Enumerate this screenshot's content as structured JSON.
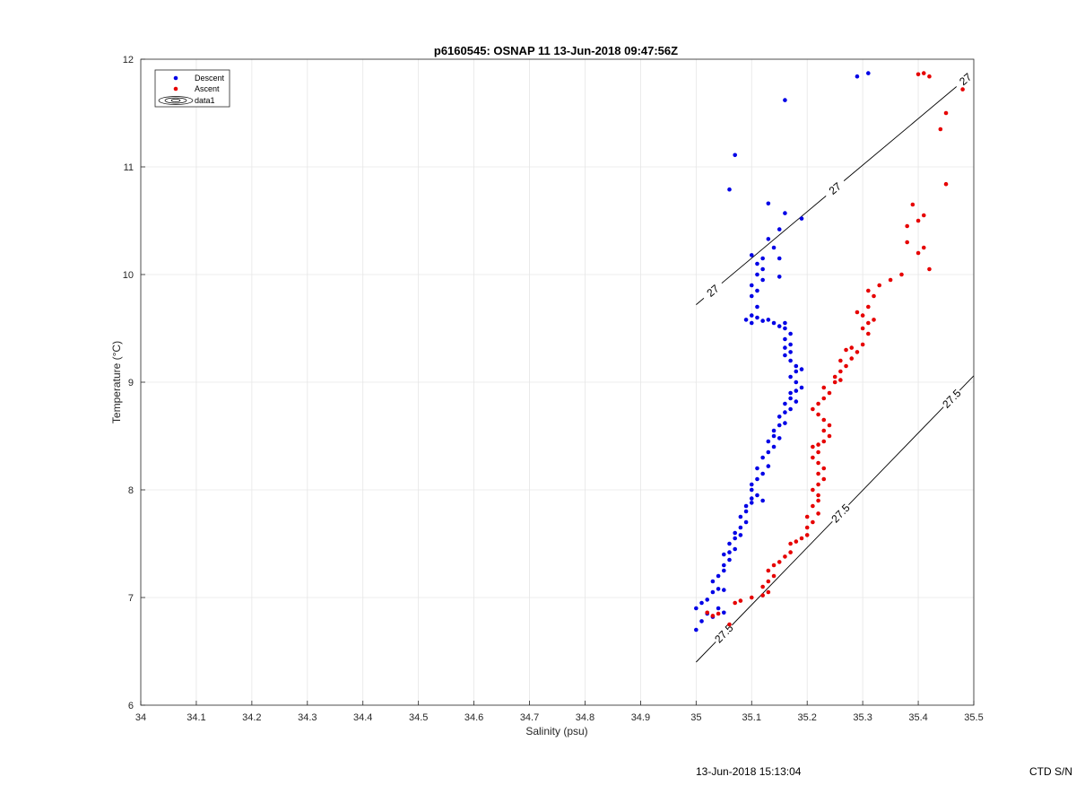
{
  "chart_data": {
    "type": "scatter",
    "title": "p6160545: OSNAP 11 13-Jun-2018 09:47:56Z",
    "xlabel": "Salinity (psu)",
    "ylabel": "Temperature (°C)",
    "xlim": [
      34,
      35.5
    ],
    "ylim": [
      6,
      12
    ],
    "xticks": [
      "34",
      "34.1",
      "34.2",
      "34.3",
      "34.4",
      "34.5",
      "34.6",
      "34.7",
      "34.8",
      "34.9",
      "35",
      "35.1",
      "35.2",
      "35.3",
      "35.4",
      "35.5"
    ],
    "yticks": [
      "6",
      "7",
      "8",
      "9",
      "10",
      "11",
      "12"
    ],
    "grid": true,
    "legend_position": "top-left",
    "legend": [
      "Descent",
      "Ascent",
      "data1"
    ],
    "contours": [
      {
        "level": "27",
        "color": "#000000",
        "points": [
          [
            35.0,
            9.72
          ],
          [
            35.5,
            11.88
          ]
        ],
        "labels": [
          {
            "text": "27",
            "at": [
              35.03,
              9.82
            ]
          },
          {
            "text": "27",
            "at": [
              35.25,
              10.82
            ]
          },
          {
            "text": "27",
            "at": [
              35.485,
              11.78
            ]
          }
        ]
      },
      {
        "level": "27.5",
        "color": "#000000",
        "points": [
          [
            35.0,
            6.4
          ],
          [
            35.5,
            9.06
          ]
        ],
        "labels": [
          {
            "text": "27.5",
            "at": [
              35.05,
              6.67
            ]
          },
          {
            "text": "27.5",
            "at": [
              35.26,
              7.78
            ]
          },
          {
            "text": "27.5",
            "at": [
              35.46,
              8.8
            ]
          }
        ]
      }
    ],
    "series": [
      {
        "name": "Descent",
        "color": "#0000e6",
        "points": [
          [
            35.0,
            6.7
          ],
          [
            35.0,
            6.9
          ],
          [
            35.01,
            6.95
          ],
          [
            35.01,
            6.78
          ],
          [
            35.02,
            6.85
          ],
          [
            35.03,
            6.82
          ],
          [
            35.02,
            6.98
          ],
          [
            35.03,
            7.05
          ],
          [
            35.04,
            7.08
          ],
          [
            35.05,
            7.07
          ],
          [
            35.04,
            6.9
          ],
          [
            35.05,
            6.86
          ],
          [
            35.03,
            7.15
          ],
          [
            35.04,
            7.2
          ],
          [
            35.05,
            7.25
          ],
          [
            35.05,
            7.3
          ],
          [
            35.06,
            7.35
          ],
          [
            35.05,
            7.4
          ],
          [
            35.06,
            7.42
          ],
          [
            35.07,
            7.45
          ],
          [
            35.06,
            7.5
          ],
          [
            35.07,
            7.55
          ],
          [
            35.08,
            7.58
          ],
          [
            35.07,
            7.6
          ],
          [
            35.08,
            7.65
          ],
          [
            35.09,
            7.7
          ],
          [
            35.08,
            7.75
          ],
          [
            35.09,
            7.8
          ],
          [
            35.09,
            7.85
          ],
          [
            35.1,
            7.88
          ],
          [
            35.1,
            7.92
          ],
          [
            35.11,
            7.95
          ],
          [
            35.12,
            7.9
          ],
          [
            35.1,
            8.0
          ],
          [
            35.1,
            8.05
          ],
          [
            35.11,
            8.1
          ],
          [
            35.12,
            8.15
          ],
          [
            35.11,
            8.2
          ],
          [
            35.13,
            8.22
          ],
          [
            35.12,
            8.3
          ],
          [
            35.13,
            8.35
          ],
          [
            35.14,
            8.4
          ],
          [
            35.13,
            8.45
          ],
          [
            35.14,
            8.5
          ],
          [
            35.15,
            8.48
          ],
          [
            35.14,
            8.55
          ],
          [
            35.15,
            8.6
          ],
          [
            35.16,
            8.62
          ],
          [
            35.15,
            8.68
          ],
          [
            35.16,
            8.72
          ],
          [
            35.17,
            8.75
          ],
          [
            35.16,
            8.8
          ],
          [
            35.17,
            8.85
          ],
          [
            35.18,
            8.82
          ],
          [
            35.17,
            8.9
          ],
          [
            35.18,
            8.92
          ],
          [
            35.19,
            8.95
          ],
          [
            35.18,
            9.0
          ],
          [
            35.17,
            9.05
          ],
          [
            35.18,
            9.1
          ],
          [
            35.19,
            9.12
          ],
          [
            35.18,
            9.15
          ],
          [
            35.17,
            9.2
          ],
          [
            35.16,
            9.25
          ],
          [
            35.17,
            9.28
          ],
          [
            35.16,
            9.32
          ],
          [
            35.17,
            9.35
          ],
          [
            35.16,
            9.4
          ],
          [
            35.17,
            9.45
          ],
          [
            35.16,
            9.5
          ],
          [
            35.15,
            9.52
          ],
          [
            35.16,
            9.55
          ],
          [
            35.14,
            9.55
          ],
          [
            35.13,
            9.58
          ],
          [
            35.12,
            9.57
          ],
          [
            35.11,
            9.6
          ],
          [
            35.1,
            9.62
          ],
          [
            35.09,
            9.58
          ],
          [
            35.1,
            9.55
          ],
          [
            35.11,
            9.7
          ],
          [
            35.1,
            9.8
          ],
          [
            35.11,
            9.85
          ],
          [
            35.1,
            9.9
          ],
          [
            35.12,
            9.95
          ],
          [
            35.11,
            10.0
          ],
          [
            35.12,
            10.05
          ],
          [
            35.11,
            10.1
          ],
          [
            35.12,
            10.15
          ],
          [
            35.1,
            10.18
          ],
          [
            35.14,
            10.25
          ],
          [
            35.15,
            10.15
          ],
          [
            35.15,
            9.98
          ],
          [
            35.13,
            10.33
          ],
          [
            35.15,
            10.42
          ],
          [
            35.16,
            10.57
          ],
          [
            35.19,
            10.52
          ],
          [
            35.13,
            10.66
          ],
          [
            35.06,
            10.79
          ],
          [
            35.07,
            11.11
          ],
          [
            35.16,
            11.62
          ],
          [
            35.29,
            11.84
          ],
          [
            35.31,
            11.87
          ]
        ]
      },
      {
        "name": "Ascent",
        "color": "#e60000",
        "points": [
          [
            35.03,
            6.83
          ],
          [
            35.04,
            6.85
          ],
          [
            35.02,
            6.86
          ],
          [
            35.06,
            6.75
          ],
          [
            35.07,
            6.95
          ],
          [
            35.08,
            6.97
          ],
          [
            35.1,
            7.0
          ],
          [
            35.12,
            7.02
          ],
          [
            35.13,
            7.05
          ],
          [
            35.12,
            7.1
          ],
          [
            35.13,
            7.15
          ],
          [
            35.14,
            7.2
          ],
          [
            35.13,
            7.25
          ],
          [
            35.14,
            7.3
          ],
          [
            35.15,
            7.33
          ],
          [
            35.16,
            7.38
          ],
          [
            35.17,
            7.42
          ],
          [
            35.17,
            7.5
          ],
          [
            35.18,
            7.52
          ],
          [
            35.19,
            7.55
          ],
          [
            35.2,
            7.58
          ],
          [
            35.2,
            7.65
          ],
          [
            35.21,
            7.7
          ],
          [
            35.2,
            7.75
          ],
          [
            35.22,
            7.78
          ],
          [
            35.21,
            7.85
          ],
          [
            35.22,
            7.9
          ],
          [
            35.22,
            7.95
          ],
          [
            35.21,
            8.0
          ],
          [
            35.22,
            8.05
          ],
          [
            35.23,
            8.1
          ],
          [
            35.22,
            8.15
          ],
          [
            35.23,
            8.2
          ],
          [
            35.22,
            8.25
          ],
          [
            35.21,
            8.3
          ],
          [
            35.22,
            8.35
          ],
          [
            35.21,
            8.4
          ],
          [
            35.22,
            8.42
          ],
          [
            35.23,
            8.45
          ],
          [
            35.24,
            8.5
          ],
          [
            35.23,
            8.55
          ],
          [
            35.24,
            8.6
          ],
          [
            35.23,
            8.65
          ],
          [
            35.22,
            8.7
          ],
          [
            35.21,
            8.75
          ],
          [
            35.22,
            8.8
          ],
          [
            35.23,
            8.85
          ],
          [
            35.24,
            8.9
          ],
          [
            35.23,
            8.95
          ],
          [
            35.25,
            9.0
          ],
          [
            35.26,
            9.02
          ],
          [
            35.25,
            9.05
          ],
          [
            35.26,
            9.1
          ],
          [
            35.27,
            9.15
          ],
          [
            35.26,
            9.2
          ],
          [
            35.28,
            9.22
          ],
          [
            35.29,
            9.28
          ],
          [
            35.27,
            9.3
          ],
          [
            35.28,
            9.32
          ],
          [
            35.3,
            9.35
          ],
          [
            35.31,
            9.45
          ],
          [
            35.3,
            9.5
          ],
          [
            35.31,
            9.55
          ],
          [
            35.32,
            9.58
          ],
          [
            35.3,
            9.62
          ],
          [
            35.29,
            9.65
          ],
          [
            35.31,
            9.7
          ],
          [
            35.32,
            9.8
          ],
          [
            35.31,
            9.85
          ],
          [
            35.33,
            9.9
          ],
          [
            35.35,
            9.95
          ],
          [
            35.37,
            10.0
          ],
          [
            35.38,
            10.3
          ],
          [
            35.38,
            10.45
          ],
          [
            35.4,
            10.5
          ],
          [
            35.41,
            10.55
          ],
          [
            35.4,
            10.2
          ],
          [
            35.42,
            10.05
          ],
          [
            35.41,
            10.25
          ],
          [
            35.39,
            10.65
          ],
          [
            35.45,
            10.84
          ],
          [
            35.44,
            11.35
          ],
          [
            35.45,
            11.5
          ],
          [
            35.48,
            11.72
          ],
          [
            35.4,
            11.86
          ],
          [
            35.41,
            11.87
          ],
          [
            35.42,
            11.84
          ]
        ]
      }
    ]
  },
  "footer": {
    "timestamp": "13-Jun-2018 15:13:04",
    "serial": "CTD S/N"
  },
  "colors": {
    "grid": "#e6e6e6",
    "axes": "#262626",
    "descent": "#0000e6",
    "ascent": "#e60000"
  }
}
